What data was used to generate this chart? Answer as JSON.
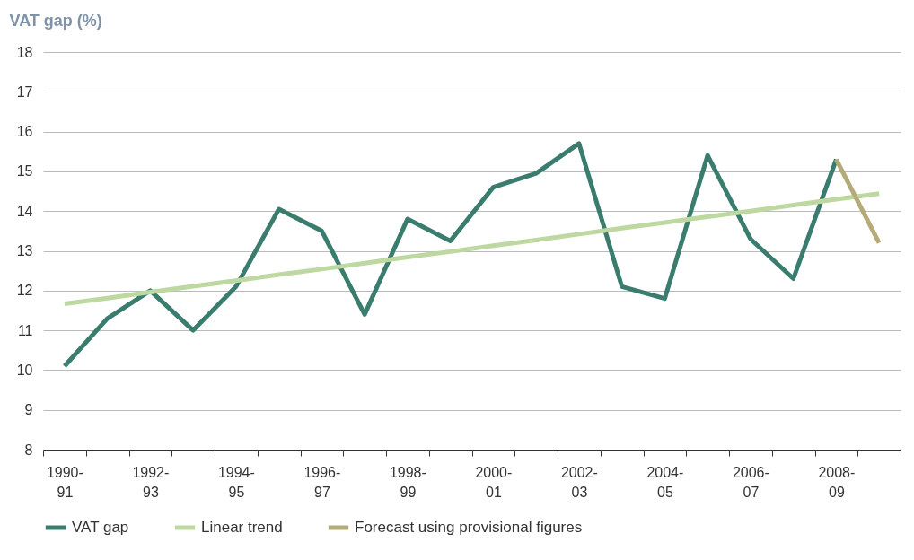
{
  "chart_data": {
    "type": "line",
    "ylabel": "VAT gap (%)",
    "categories": [
      "1990-91",
      null,
      "1992-93",
      null,
      "1994-95",
      null,
      "1996-97",
      null,
      "1998-99",
      null,
      "2000-01",
      null,
      "2002-03",
      null,
      "2004-05",
      null,
      "2006-07",
      null,
      "2008-09",
      null
    ],
    "series": [
      {
        "name": "VAT gap",
        "color": "#3a7d6e",
        "values": [
          10.1,
          11.3,
          12.0,
          11.0,
          12.1,
          14.05,
          13.5,
          11.4,
          13.8,
          13.25,
          14.6,
          14.95,
          15.7,
          12.1,
          11.8,
          15.4,
          13.3,
          12.3,
          15.3,
          null
        ]
      },
      {
        "name": "Linear trend",
        "color": "#bdd8a0",
        "values": [
          11.67,
          11.81,
          11.96,
          12.11,
          12.25,
          12.4,
          12.54,
          12.69,
          12.84,
          12.98,
          13.13,
          13.27,
          13.42,
          13.57,
          13.71,
          13.86,
          14.0,
          14.15,
          14.3,
          14.44
        ]
      },
      {
        "name": "Forecast using provisional figures",
        "color": "#b5ab78",
        "values": [
          null,
          null,
          null,
          null,
          null,
          null,
          null,
          null,
          null,
          null,
          null,
          null,
          null,
          null,
          null,
          null,
          null,
          null,
          15.3,
          13.2
        ]
      }
    ],
    "ylim": [
      8,
      18
    ],
    "yticks": [
      8,
      9,
      10,
      11,
      12,
      13,
      14,
      15,
      16,
      17,
      18
    ],
    "grid": "y",
    "legend": "bottom"
  }
}
